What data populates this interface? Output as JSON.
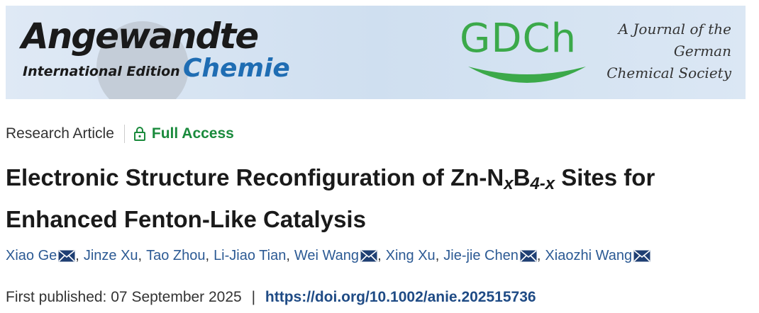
{
  "header": {
    "journal": "Angewandte",
    "edition": "International Edition",
    "journal_sub": "Chemie",
    "society_logo": "GDCh",
    "society_lines": [
      "A Journal of the",
      "German",
      "Chemical Society"
    ]
  },
  "article": {
    "type": "Research Article",
    "access": "Full Access",
    "title": {
      "lead": "Electronic Structure Reconfiguration of Zn-N",
      "sub1": "x",
      "mid": "B",
      "sub2": "4-x",
      "tail": "Sites for Enhanced Fenton-Like Catalysis"
    },
    "separator": ",",
    "authors": [
      {
        "name": "Xiao Ge",
        "email": true
      },
      {
        "name": "Jinze Xu",
        "email": false
      },
      {
        "name": "Tao Zhou",
        "email": false
      },
      {
        "name": "Li-Jiao Tian",
        "email": false
      },
      {
        "name": "Wei Wang",
        "email": true
      },
      {
        "name": "Xing Xu",
        "email": false
      },
      {
        "name": "Jie-jie Chen",
        "email": true
      },
      {
        "name": "Xiaozhi Wang",
        "email": true
      }
    ],
    "published_label": "First published:",
    "published_date": "07 September 2025",
    "divider": "|",
    "doi": "https://doi.org/10.1002/anie.202515736"
  }
}
